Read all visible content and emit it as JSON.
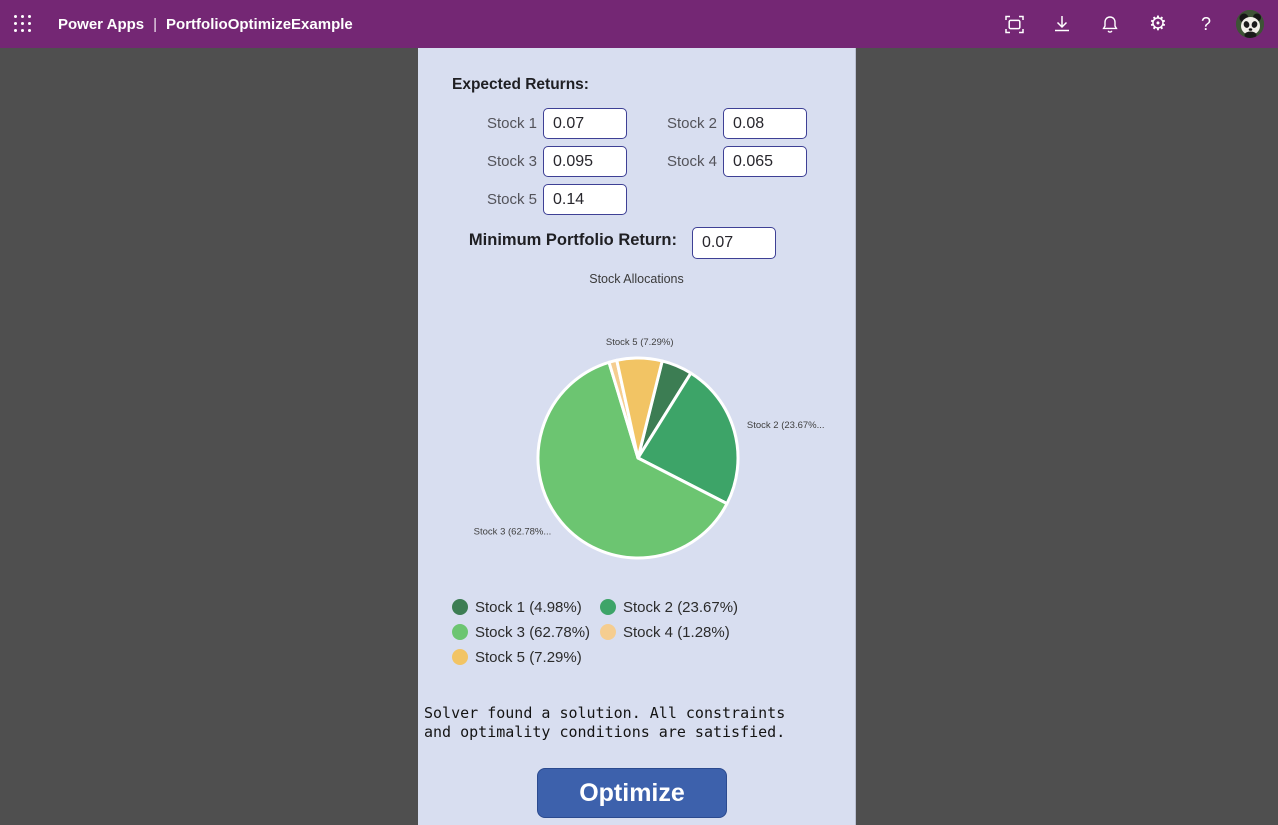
{
  "header": {
    "brand": "Power Apps",
    "separator": "|",
    "app_name": "PortfolioOptimizeExample",
    "bg_color": "#742774",
    "help_glyph": "?",
    "gear_glyph": "⚙",
    "icons": [
      "waffle-menu",
      "fit-to-screen",
      "download",
      "notifications",
      "settings",
      "help",
      "account-avatar"
    ]
  },
  "form": {
    "expected_returns_label": "Expected Returns:",
    "stocks": [
      {
        "label": "Stock 1",
        "value": "0.07"
      },
      {
        "label": "Stock 2",
        "value": "0.08"
      },
      {
        "label": "Stock 3",
        "value": "0.095"
      },
      {
        "label": "Stock 4",
        "value": "0.065"
      },
      {
        "label": "Stock 5",
        "value": "0.14"
      }
    ],
    "min_return_label": "Minimum Portfolio Return:",
    "min_return_value": "0.07"
  },
  "chart_data": {
    "type": "pie",
    "title": "Stock Allocations",
    "start_angle_deg": 14,
    "slices": [
      {
        "name": "Stock 1",
        "pct": 4.98,
        "color": "#3c7d53",
        "outer_label": null
      },
      {
        "name": "Stock 2",
        "pct": 23.67,
        "color": "#3da468",
        "outer_label": "Stock 2 (23.67%..."
      },
      {
        "name": "Stock 3",
        "pct": 62.78,
        "color": "#6cc571",
        "outer_label": "Stock 3 (62.78%..."
      },
      {
        "name": "Stock 4",
        "pct": 1.28,
        "color": "#f5cd90",
        "outer_label": null
      },
      {
        "name": "Stock 5",
        "pct": 7.29,
        "color": "#f2c464",
        "outer_label": "Stock 5 (7.29%)"
      }
    ],
    "legend": [
      "Stock 1 (4.98%)",
      "Stock 2 (23.67%)",
      "Stock 3 (62.78%)",
      "Stock 4 (1.28%)",
      "Stock 5 (7.29%)"
    ],
    "legend_position": "bottom-left, two columns"
  },
  "status": {
    "message": "Solver found a solution. All constraints and optimality conditions are satisfied."
  },
  "actions": {
    "optimize_label": "Optimize"
  }
}
